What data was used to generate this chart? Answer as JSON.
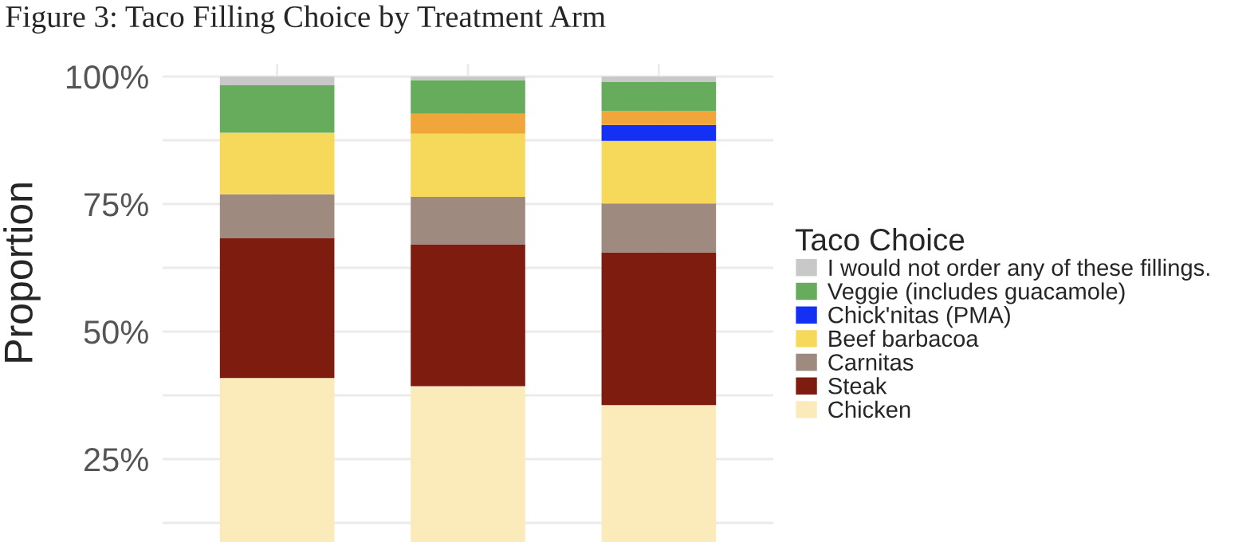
{
  "chart_data": {
    "type": "bar",
    "title": "Figure 3: Taco Filling Choice by Treatment Arm",
    "ylabel": "Proportion",
    "legend_title": "Taco Choice",
    "categories": [
      null,
      null,
      null
    ],
    "stacked": true,
    "series": [
      {
        "name": "Chicken",
        "color": "#fbebba",
        "values": [
          40.9,
          39.3,
          35.6
        ]
      },
      {
        "name": "Steak",
        "color": "#7f1c10",
        "values": [
          27.4,
          27.8,
          29.9
        ]
      },
      {
        "name": "Carnitas",
        "color": "#9e8a7e",
        "values": [
          8.6,
          9.3,
          9.6
        ]
      },
      {
        "name": "Beef barbacoa",
        "color": "#f6d95a",
        "values": [
          12.1,
          12.4,
          12.3
        ]
      },
      {
        "name": "Chick'nitas (PMA)",
        "color": "#1530f5",
        "values": [
          null,
          null,
          3.1
        ]
      },
      {
        "color": "#f0a63a",
        "values": [
          null,
          3.9,
          2.7
        ]
      },
      {
        "name": "Veggie (includes guacamole)",
        "color": "#66ac5c",
        "values": [
          9.3,
          6.6,
          5.8
        ]
      },
      {
        "name": "I would not order any of these fillings.",
        "color": "#c8c8c8",
        "values": [
          1.7,
          0.7,
          1.0
        ]
      }
    ],
    "ylim": [
      0,
      102.5
    ],
    "yticks": [
      {
        "value": 12.5,
        "label": null
      },
      {
        "value": 25,
        "label": "25%"
      },
      {
        "value": 37.5,
        "label": null
      },
      {
        "value": 50,
        "label": "50%"
      },
      {
        "value": 62.5,
        "label": null
      },
      {
        "value": 75,
        "label": "75%"
      },
      {
        "value": 87.5,
        "label": null
      },
      {
        "value": 100,
        "label": "100%"
      }
    ],
    "grid": true,
    "legend": "right",
    "tick_labels": "y"
  }
}
